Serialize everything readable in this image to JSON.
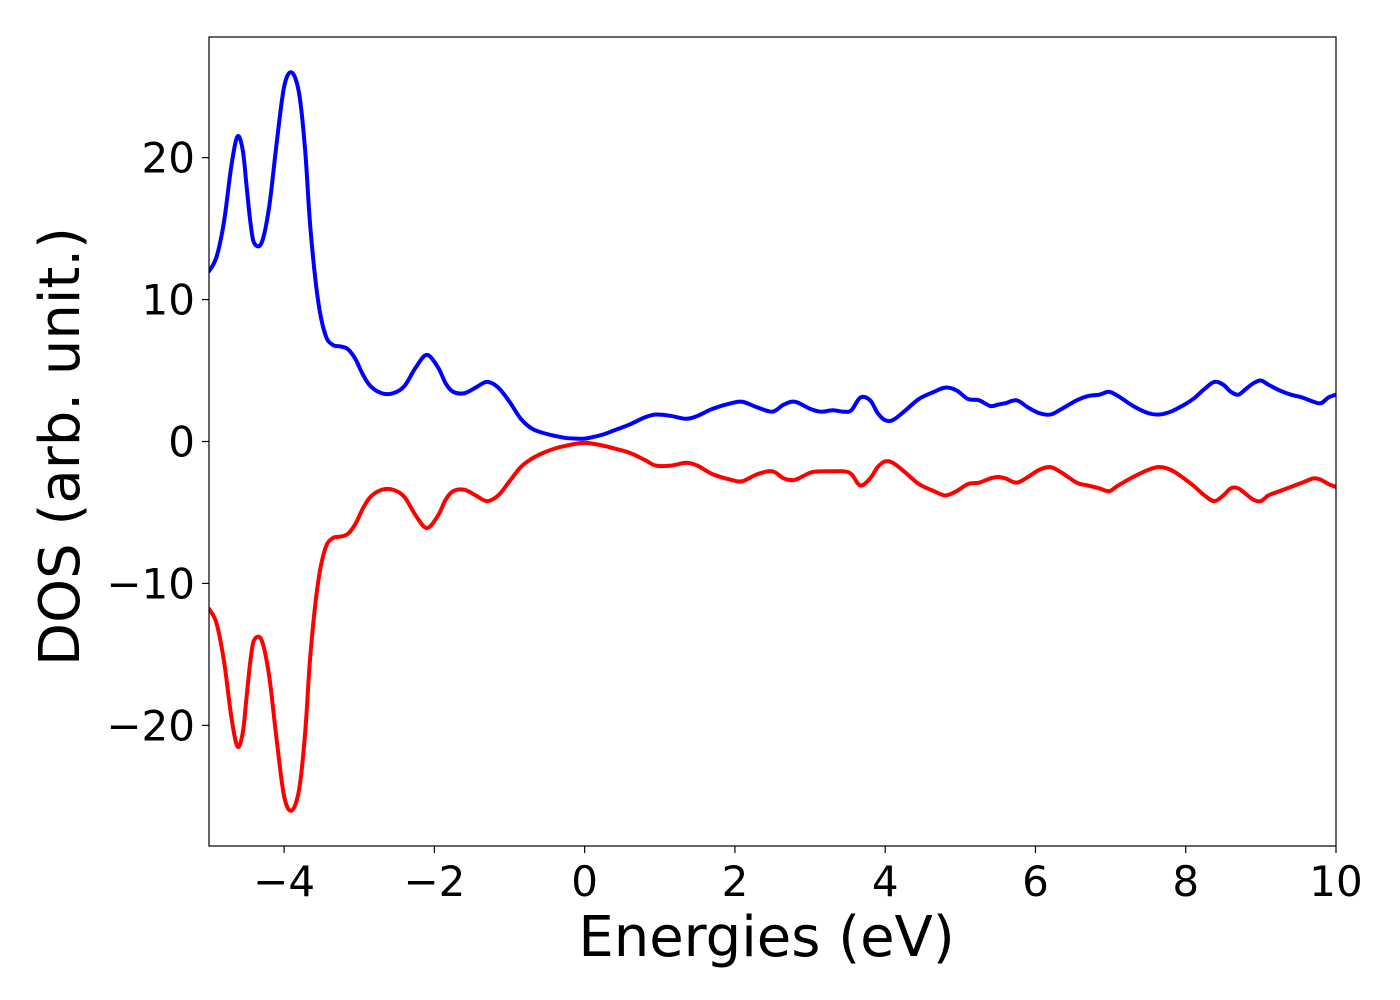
{
  "chart_data": {
    "type": "line",
    "title": "",
    "xlabel": "Energies (eV)",
    "ylabel": "DOS (arb. unit.)",
    "xlim": [
      -5,
      10
    ],
    "ylim": [
      -28.5,
      28.5
    ],
    "grid": false,
    "legend": "none",
    "x_ticks": [
      -4,
      -2,
      0,
      2,
      4,
      6,
      8,
      10
    ],
    "y_ticks": [
      -20,
      -10,
      0,
      10,
      20
    ],
    "x_tick_labels": [
      "−4",
      "−2",
      "0",
      "2",
      "4",
      "6",
      "8",
      "10"
    ],
    "y_tick_labels": [
      "−20",
      "−10",
      "0",
      "10",
      "20"
    ],
    "series": [
      {
        "color": "#0000ff",
        "x": [
          -5.0,
          -4.9,
          -4.8,
          -4.7,
          -4.62,
          -4.55,
          -4.5,
          -4.45,
          -4.4,
          -4.3,
          -4.2,
          -4.1,
          -4.0,
          -3.9,
          -3.8,
          -3.72,
          -3.65,
          -3.55,
          -3.45,
          -3.35,
          -3.25,
          -3.15,
          -3.05,
          -2.95,
          -2.85,
          -2.7,
          -2.55,
          -2.4,
          -2.25,
          -2.1,
          -1.95,
          -1.85,
          -1.75,
          -1.6,
          -1.45,
          -1.3,
          -1.15,
          -1.0,
          -0.85,
          -0.7,
          -0.55,
          -0.4,
          -0.25,
          -0.1,
          0.0,
          0.1,
          0.25,
          0.4,
          0.6,
          0.8,
          0.95,
          1.15,
          1.35,
          1.5,
          1.7,
          1.95,
          2.1,
          2.3,
          2.5,
          2.65,
          2.8,
          3.0,
          3.15,
          3.3,
          3.45,
          3.55,
          3.67,
          3.8,
          3.9,
          4.0,
          4.1,
          4.25,
          4.45,
          4.65,
          4.8,
          4.95,
          5.1,
          5.25,
          5.4,
          5.5,
          5.6,
          5.75,
          5.9,
          6.05,
          6.2,
          6.35,
          6.55,
          6.7,
          6.85,
          6.98,
          7.1,
          7.3,
          7.5,
          7.65,
          7.8,
          7.95,
          8.1,
          8.25,
          8.38,
          8.5,
          8.6,
          8.7,
          8.8,
          8.9,
          9.0,
          9.1,
          9.25,
          9.4,
          9.55,
          9.7,
          9.8,
          9.9,
          10.0
        ],
        "values": [
          12.0,
          13.0,
          15.5,
          19.5,
          21.5,
          20.5,
          18.0,
          15.5,
          14.0,
          14.0,
          16.5,
          21.0,
          25.0,
          26.0,
          24.5,
          20.5,
          15.0,
          10.0,
          7.5,
          6.8,
          6.7,
          6.5,
          5.8,
          4.7,
          3.9,
          3.4,
          3.4,
          3.9,
          5.2,
          6.1,
          5.2,
          4.1,
          3.5,
          3.4,
          3.8,
          4.2,
          3.8,
          2.8,
          1.6,
          0.9,
          0.6,
          0.4,
          0.25,
          0.2,
          0.2,
          0.3,
          0.5,
          0.8,
          1.2,
          1.7,
          1.9,
          1.8,
          1.6,
          1.8,
          2.3,
          2.7,
          2.8,
          2.4,
          2.1,
          2.6,
          2.8,
          2.3,
          2.1,
          2.2,
          2.1,
          2.2,
          3.1,
          2.9,
          2.0,
          1.5,
          1.5,
          2.1,
          3.0,
          3.5,
          3.8,
          3.6,
          3.0,
          2.9,
          2.5,
          2.6,
          2.7,
          2.9,
          2.4,
          2.0,
          1.9,
          2.3,
          2.9,
          3.2,
          3.3,
          3.5,
          3.2,
          2.5,
          2.0,
          1.9,
          2.1,
          2.5,
          3.0,
          3.7,
          4.2,
          4.0,
          3.5,
          3.3,
          3.7,
          4.1,
          4.3,
          4.0,
          3.6,
          3.3,
          3.1,
          2.8,
          2.7,
          3.1,
          3.3
        ]
      },
      {
        "color": "#ff0000",
        "x": [
          -5.0,
          -4.9,
          -4.8,
          -4.7,
          -4.62,
          -4.55,
          -4.5,
          -4.45,
          -4.4,
          -4.3,
          -4.2,
          -4.1,
          -4.0,
          -3.9,
          -3.8,
          -3.72,
          -3.65,
          -3.55,
          -3.45,
          -3.35,
          -3.25,
          -3.15,
          -3.05,
          -2.95,
          -2.85,
          -2.7,
          -2.55,
          -2.4,
          -2.25,
          -2.1,
          -1.95,
          -1.85,
          -1.75,
          -1.6,
          -1.45,
          -1.3,
          -1.15,
          -1.0,
          -0.85,
          -0.7,
          -0.55,
          -0.4,
          -0.25,
          -0.1,
          0.0,
          0.1,
          0.25,
          0.4,
          0.6,
          0.8,
          0.95,
          1.15,
          1.35,
          1.5,
          1.7,
          1.95,
          2.1,
          2.3,
          2.5,
          2.65,
          2.8,
          3.0,
          3.15,
          3.3,
          3.45,
          3.55,
          3.67,
          3.8,
          3.9,
          4.0,
          4.1,
          4.25,
          4.45,
          4.65,
          4.8,
          4.95,
          5.1,
          5.25,
          5.4,
          5.5,
          5.6,
          5.75,
          5.9,
          6.05,
          6.2,
          6.35,
          6.55,
          6.7,
          6.85,
          6.98,
          7.1,
          7.3,
          7.5,
          7.65,
          7.8,
          7.95,
          8.1,
          8.25,
          8.38,
          8.5,
          8.6,
          8.7,
          8.8,
          8.9,
          9.0,
          9.1,
          9.25,
          9.4,
          9.55,
          9.7,
          9.8,
          9.9,
          10.0
        ],
        "values": [
          -11.8,
          -12.8,
          -15.5,
          -19.5,
          -21.5,
          -20.5,
          -18.0,
          -15.5,
          -14.0,
          -14.0,
          -16.5,
          -21.0,
          -25.0,
          -26.0,
          -24.5,
          -20.5,
          -15.0,
          -10.0,
          -7.5,
          -6.8,
          -6.7,
          -6.5,
          -5.8,
          -4.7,
          -3.9,
          -3.4,
          -3.4,
          -3.9,
          -5.2,
          -6.1,
          -5.2,
          -4.1,
          -3.5,
          -3.4,
          -3.8,
          -4.2,
          -3.8,
          -2.8,
          -1.8,
          -1.2,
          -0.8,
          -0.5,
          -0.3,
          -0.15,
          -0.1,
          -0.15,
          -0.3,
          -0.5,
          -0.8,
          -1.3,
          -1.7,
          -1.7,
          -1.5,
          -1.7,
          -2.3,
          -2.7,
          -2.8,
          -2.3,
          -2.1,
          -2.6,
          -2.7,
          -2.2,
          -2.1,
          -2.1,
          -2.1,
          -2.3,
          -3.1,
          -2.6,
          -1.8,
          -1.4,
          -1.5,
          -2.1,
          -3.0,
          -3.5,
          -3.8,
          -3.5,
          -3.0,
          -2.9,
          -2.6,
          -2.5,
          -2.6,
          -2.9,
          -2.5,
          -2.0,
          -1.8,
          -2.2,
          -2.9,
          -3.1,
          -3.3,
          -3.5,
          -3.1,
          -2.5,
          -2.0,
          -1.8,
          -2.0,
          -2.5,
          -3.1,
          -3.8,
          -4.2,
          -3.8,
          -3.3,
          -3.3,
          -3.7,
          -4.1,
          -4.2,
          -3.8,
          -3.5,
          -3.2,
          -2.9,
          -2.6,
          -2.7,
          -3.0,
          -3.2
        ]
      }
    ]
  }
}
